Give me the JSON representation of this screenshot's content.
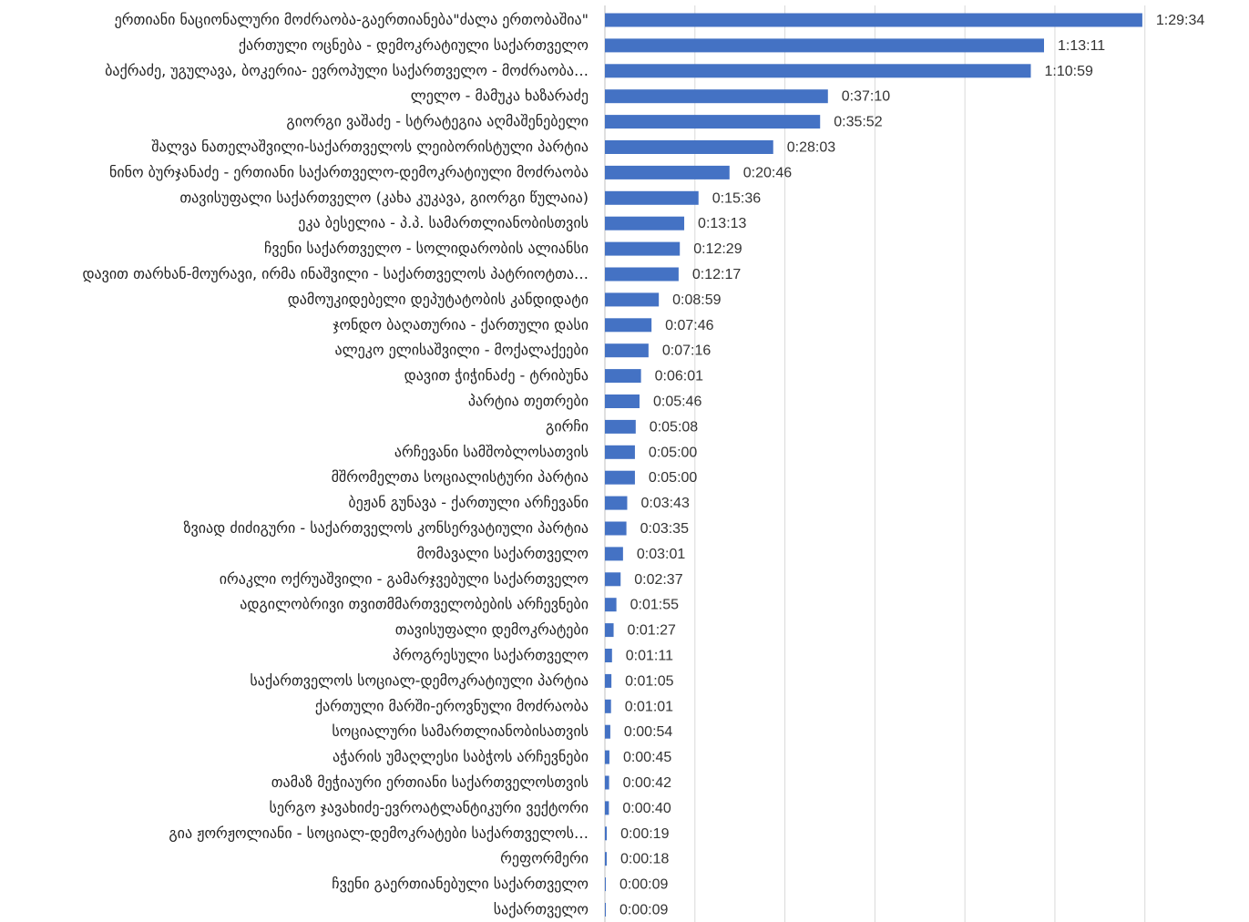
{
  "chart_data": {
    "type": "bar",
    "orientation": "horizontal",
    "title": "",
    "xlabel": "",
    "ylabel": "",
    "grid": true,
    "legend": "none",
    "bar_color": "#4472c4",
    "gridline_color": "#d9d9d9",
    "xlim_seconds": [
      0,
      6300
    ],
    "categories": [
      "ერთიანი ნაციონალური მოძრაობა-გაერთიანება\"ძალა ერთობაშია\"",
      "ქართული ოცნება - დემოკრატიული საქართველო",
      "ბაქრაძე, უგულავა, ბოკერია- ევროპული საქართველო - მოძრაობა…",
      "ლელო - მამუკა ხაზარაძე",
      "გიორგი ვაშაძე - სტრატეგია აღმაშენებელი",
      "შალვა ნათელაშვილი-საქართველოს ლეიბორისტული პარტია",
      "ნინო ბურჯანაძე - ერთიანი საქართველო-დემოკრატიული მოძრაობა",
      "თავისუფალი საქართველო (კახა კუკავა, გიორგი წულაია)",
      "ეკა ბესელია - პ.პ. სამართლიანობისთვის",
      "ჩვენი საქართველო - სოლიდარობის ალიანსი",
      "დავით თარხან-მოურავი, ირმა ინაშვილი - საქართველოს პატრიოტთა…",
      "დამოუკიდებელი დეპუტატობის კანდიდატი",
      "ჯონდო ბაღათურია - ქართული დასი",
      "ალეკო ელისაშვილი - მოქალაქეები",
      "დავით ჭიჭინაძე - ტრიბუნა",
      "პარტია თეთრები",
      "გირჩი",
      "არჩევანი სამშობლოსათვის",
      "მშრომელთა სოციალისტური პარტია",
      "ბეჟან გუნავა - ქართული არჩევანი",
      "ზვიად ძიძიგური - საქართველოს კონსერვატიული პარტია",
      "მომავალი საქართველო",
      "ირაკლი ოქრუაშვილი - გამარჯვებული საქართველო",
      "ადგილობრივი თვითმმართველობების არჩევნები",
      "თავისუფალი დემოკრატები",
      "პროგრესული საქართველო",
      "საქართველოს სოციალ-დემოკრატიული პარტია",
      "ქართული მარში-ეროვნული მოძრაობა",
      "სოციალური სამართლიანობისათვის",
      "აჭარის უმაღლესი საბჭოს არჩევნები",
      "თამაზ მეჭიაური ერთიანი საქართველოსთვის",
      "სერგო ჯავახიძე-ევროატლანტიკური ვექტორი",
      "გია ჟორჟოლიანი - სოციალ-დემოკრატები საქართველოს…",
      "რეფორმერი",
      "ჩვენი გაერთიანებული საქართველო",
      "საქართველო"
    ],
    "value_labels": [
      "1:29:34",
      "1:13:11",
      "1:10:59",
      "0:37:10",
      "0:35:52",
      "0:28:03",
      "0:20:46",
      "0:15:36",
      "0:13:13",
      "0:12:29",
      "0:12:17",
      "0:08:59",
      "0:07:46",
      "0:07:16",
      "0:06:01",
      "0:05:46",
      "0:05:08",
      "0:05:00",
      "0:05:00",
      "0:03:43",
      "0:03:35",
      "0:03:01",
      "0:02:37",
      "0:01:55",
      "0:01:27",
      "0:01:11",
      "0:01:05",
      "0:01:01",
      "0:00:54",
      "0:00:45",
      "0:00:42",
      "0:00:40",
      "0:00:19",
      "0:00:18",
      "0:00:09",
      "0:00:09"
    ]
  }
}
